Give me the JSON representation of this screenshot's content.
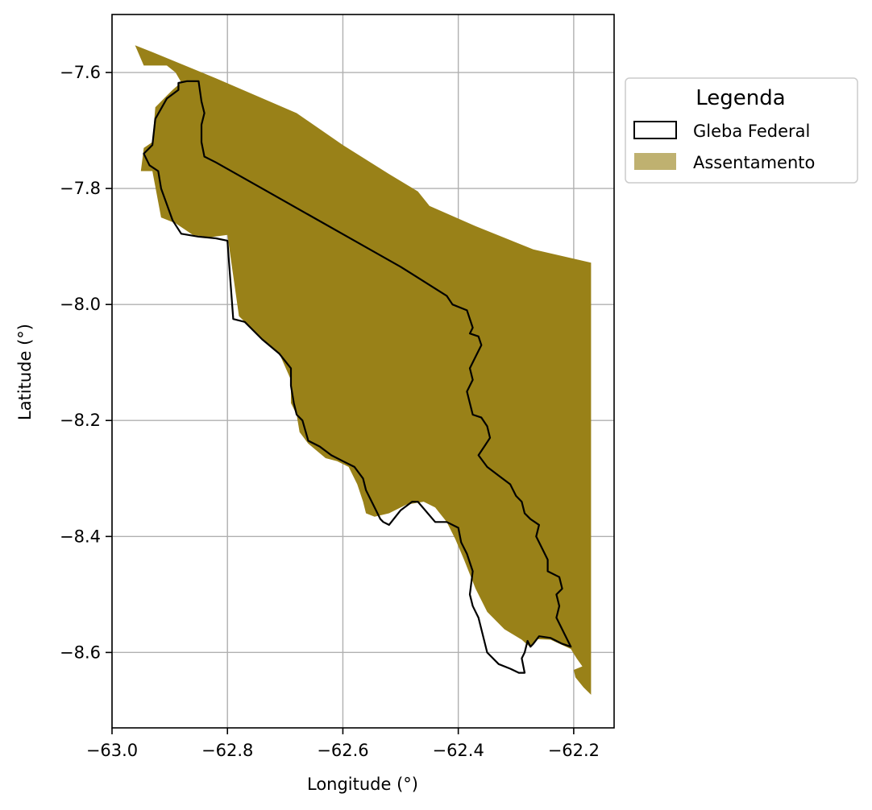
{
  "chart_data": {
    "type": "map",
    "xlabel": "Longitude (°)",
    "ylabel": "Latitude (°)",
    "xlim": [
      -63.0,
      -62.13
    ],
    "ylim": [
      -8.73,
      -7.5
    ],
    "x_ticks": [
      -63.0,
      -62.8,
      -62.6,
      -62.4,
      -62.2
    ],
    "y_ticks": [
      -7.6,
      -7.8,
      -8.0,
      -8.2,
      -8.4,
      -8.6
    ],
    "x_tick_labels": [
      "−63.0",
      "−62.8",
      "−62.6",
      "−62.4",
      "−62.2"
    ],
    "y_tick_labels": [
      "−7.6",
      "−7.8",
      "−8.0",
      "−8.2",
      "−8.4",
      "−8.6"
    ],
    "grid": true,
    "legend": {
      "title": "Legenda",
      "position": "outside right top",
      "entries": [
        {
          "label": "Gleba Federal",
          "style": "outline",
          "color": "#000000"
        },
        {
          "label": "Assentamento",
          "style": "filled",
          "color": "#bfb170"
        }
      ]
    },
    "layers": [
      {
        "name": "Assentamento",
        "color": "#998118",
        "polygon": [
          [
            -62.96,
            -7.553
          ],
          [
            -62.93,
            -7.565
          ],
          [
            -62.82,
            -7.61
          ],
          [
            -62.68,
            -7.67
          ],
          [
            -62.6,
            -7.725
          ],
          [
            -62.52,
            -7.775
          ],
          [
            -62.47,
            -7.805
          ],
          [
            -62.45,
            -7.83
          ],
          [
            -62.37,
            -7.865
          ],
          [
            -62.27,
            -7.905
          ],
          [
            -62.17,
            -7.928
          ],
          [
            -62.17,
            -8.01
          ],
          [
            -62.17,
            -8.12
          ],
          [
            -62.17,
            -8.25
          ],
          [
            -62.17,
            -8.38
          ],
          [
            -62.17,
            -8.5
          ],
          [
            -62.17,
            -8.6
          ],
          [
            -62.17,
            -8.673
          ],
          [
            -62.183,
            -8.66
          ],
          [
            -62.197,
            -8.643
          ],
          [
            -62.2,
            -8.63
          ],
          [
            -62.185,
            -8.624
          ],
          [
            -62.195,
            -8.61
          ],
          [
            -62.205,
            -8.594
          ],
          [
            -62.24,
            -8.578
          ],
          [
            -62.265,
            -8.577
          ],
          [
            -62.275,
            -8.59
          ],
          [
            -62.28,
            -8.587
          ],
          [
            -62.29,
            -8.578
          ],
          [
            -62.32,
            -8.56
          ],
          [
            -62.35,
            -8.53
          ],
          [
            -62.37,
            -8.49
          ],
          [
            -62.39,
            -8.44
          ],
          [
            -62.405,
            -8.405
          ],
          [
            -62.42,
            -8.375
          ],
          [
            -62.44,
            -8.35
          ],
          [
            -62.46,
            -8.34
          ],
          [
            -62.49,
            -8.345
          ],
          [
            -62.52,
            -8.36
          ],
          [
            -62.545,
            -8.366
          ],
          [
            -62.56,
            -8.36
          ],
          [
            -62.565,
            -8.34
          ],
          [
            -62.575,
            -8.31
          ],
          [
            -62.59,
            -8.28
          ],
          [
            -62.61,
            -8.27
          ],
          [
            -62.63,
            -8.265
          ],
          [
            -62.66,
            -8.24
          ],
          [
            -62.675,
            -8.22
          ],
          [
            -62.68,
            -8.19
          ],
          [
            -62.69,
            -8.17
          ],
          [
            -62.69,
            -8.13
          ],
          [
            -62.71,
            -8.085
          ],
          [
            -62.74,
            -8.06
          ],
          [
            -62.78,
            -8.02
          ],
          [
            -62.8,
            -7.88
          ],
          [
            -62.83,
            -7.884
          ],
          [
            -62.86,
            -7.88
          ],
          [
            -62.89,
            -7.86
          ],
          [
            -62.915,
            -7.85
          ],
          [
            -62.93,
            -7.77
          ],
          [
            -62.95,
            -7.77
          ],
          [
            -62.945,
            -7.73
          ],
          [
            -62.93,
            -7.72
          ],
          [
            -62.925,
            -7.66
          ],
          [
            -62.905,
            -7.64
          ],
          [
            -62.895,
            -7.63
          ],
          [
            -62.88,
            -7.617
          ],
          [
            -62.89,
            -7.6
          ],
          [
            -62.905,
            -7.588
          ],
          [
            -62.945,
            -7.588
          ],
          [
            -62.96,
            -7.553
          ]
        ]
      },
      {
        "name": "Gleba Federal",
        "color": "#000000",
        "polygon": [
          [
            -62.86,
            -7.615
          ],
          [
            -62.85,
            -7.615
          ],
          [
            -62.845,
            -7.65
          ],
          [
            -62.84,
            -7.67
          ],
          [
            -62.845,
            -7.69
          ],
          [
            -62.845,
            -7.72
          ],
          [
            -62.84,
            -7.745
          ],
          [
            -62.82,
            -7.755
          ],
          [
            -62.74,
            -7.8
          ],
          [
            -62.66,
            -7.845
          ],
          [
            -62.58,
            -7.89
          ],
          [
            -62.5,
            -7.935
          ],
          [
            -62.42,
            -7.985
          ],
          [
            -62.41,
            -8.0
          ],
          [
            -62.385,
            -8.01
          ],
          [
            -62.375,
            -8.04
          ],
          [
            -62.38,
            -8.05
          ],
          [
            -62.365,
            -8.055
          ],
          [
            -62.36,
            -8.07
          ],
          [
            -62.37,
            -8.09
          ],
          [
            -62.38,
            -8.11
          ],
          [
            -62.375,
            -8.13
          ],
          [
            -62.385,
            -8.15
          ],
          [
            -62.38,
            -8.17
          ],
          [
            -62.375,
            -8.19
          ],
          [
            -62.36,
            -8.195
          ],
          [
            -62.35,
            -8.21
          ],
          [
            -62.345,
            -8.23
          ],
          [
            -62.355,
            -8.245
          ],
          [
            -62.365,
            -8.26
          ],
          [
            -62.35,
            -8.28
          ],
          [
            -62.33,
            -8.295
          ],
          [
            -62.31,
            -8.31
          ],
          [
            -62.3,
            -8.33
          ],
          [
            -62.29,
            -8.34
          ],
          [
            -62.285,
            -8.36
          ],
          [
            -62.275,
            -8.37
          ],
          [
            -62.26,
            -8.38
          ],
          [
            -62.265,
            -8.4
          ],
          [
            -62.255,
            -8.42
          ],
          [
            -62.245,
            -8.44
          ],
          [
            -62.245,
            -8.46
          ],
          [
            -62.225,
            -8.47
          ],
          [
            -62.22,
            -8.49
          ],
          [
            -62.23,
            -8.5
          ],
          [
            -62.225,
            -8.52
          ],
          [
            -62.23,
            -8.54
          ],
          [
            -62.215,
            -8.57
          ],
          [
            -62.205,
            -8.59
          ],
          [
            -62.22,
            -8.585
          ],
          [
            -62.24,
            -8.575
          ],
          [
            -62.26,
            -8.572
          ],
          [
            -62.27,
            -8.585
          ],
          [
            -62.275,
            -8.59
          ],
          [
            -62.28,
            -8.58
          ],
          [
            -62.285,
            -8.6
          ],
          [
            -62.29,
            -8.61
          ],
          [
            -62.285,
            -8.635
          ],
          [
            -62.295,
            -8.635
          ],
          [
            -62.31,
            -8.628
          ],
          [
            -62.33,
            -8.62
          ],
          [
            -62.35,
            -8.6
          ],
          [
            -62.36,
            -8.56
          ],
          [
            -62.365,
            -8.54
          ],
          [
            -62.375,
            -8.52
          ],
          [
            -62.38,
            -8.5
          ],
          [
            -62.375,
            -8.46
          ],
          [
            -62.385,
            -8.43
          ],
          [
            -62.395,
            -8.41
          ],
          [
            -62.4,
            -8.385
          ],
          [
            -62.42,
            -8.375
          ],
          [
            -62.44,
            -8.375
          ],
          [
            -62.47,
            -8.34
          ],
          [
            -62.48,
            -8.34
          ],
          [
            -62.5,
            -8.355
          ],
          [
            -62.52,
            -8.38
          ],
          [
            -62.53,
            -8.375
          ],
          [
            -62.535,
            -8.37
          ],
          [
            -62.545,
            -8.35
          ],
          [
            -62.56,
            -8.32
          ],
          [
            -62.565,
            -8.3
          ],
          [
            -62.58,
            -8.28
          ],
          [
            -62.6,
            -8.27
          ],
          [
            -62.62,
            -8.26
          ],
          [
            -62.64,
            -8.245
          ],
          [
            -62.66,
            -8.235
          ],
          [
            -62.67,
            -8.2
          ],
          [
            -62.68,
            -8.19
          ],
          [
            -62.685,
            -8.17
          ],
          [
            -62.69,
            -8.14
          ],
          [
            -62.69,
            -8.11
          ],
          [
            -62.71,
            -8.085
          ],
          [
            -62.74,
            -8.06
          ],
          [
            -62.77,
            -8.03
          ],
          [
            -62.79,
            -8.025
          ],
          [
            -62.8,
            -7.89
          ],
          [
            -62.82,
            -7.886
          ],
          [
            -62.85,
            -7.883
          ],
          [
            -62.88,
            -7.878
          ],
          [
            -62.895,
            -7.855
          ],
          [
            -62.915,
            -7.8
          ],
          [
            -62.92,
            -7.77
          ],
          [
            -62.935,
            -7.76
          ],
          [
            -62.945,
            -7.74
          ],
          [
            -62.93,
            -7.725
          ],
          [
            -62.925,
            -7.68
          ],
          [
            -62.905,
            -7.645
          ],
          [
            -62.885,
            -7.63
          ],
          [
            -62.885,
            -7.618
          ],
          [
            -62.87,
            -7.615
          ],
          [
            -62.86,
            -7.615
          ]
        ]
      }
    ]
  }
}
